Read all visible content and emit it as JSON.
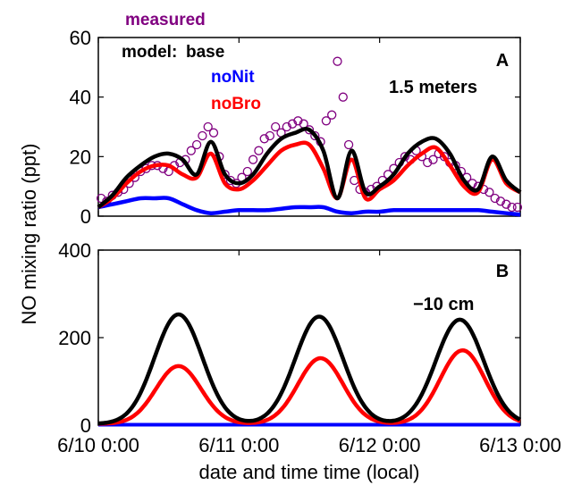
{
  "chart_data": [
    {
      "type": "scatter+line",
      "panel_label": "A",
      "annotation": "1.5 meters",
      "ylim": [
        0,
        60
      ],
      "yticks": [
        "0",
        "20",
        "40",
        "60"
      ],
      "xlim": [
        0,
        3
      ],
      "legend": {
        "measured": "measured",
        "model_prefix": "model:",
        "base": "base",
        "noNit": "noNit",
        "noBro": "noBro"
      },
      "colors": {
        "measured": "#800080",
        "base": "#000000",
        "noNit": "#0000ff",
        "noBro": "#ff0000"
      },
      "series": [
        {
          "name": "base",
          "x": [
            0.0,
            0.1,
            0.2,
            0.3,
            0.4,
            0.5,
            0.6,
            0.7,
            0.8,
            0.9,
            1.0,
            1.1,
            1.2,
            1.3,
            1.4,
            1.5,
            1.6,
            1.7,
            1.8,
            1.9,
            2.0,
            2.1,
            2.2,
            2.3,
            2.4,
            2.5,
            2.6,
            2.7,
            2.8,
            2.9,
            3.0
          ],
          "y": [
            3,
            7,
            13,
            17,
            20,
            21,
            19,
            14,
            25,
            14,
            11,
            14,
            21,
            26,
            28,
            29,
            22,
            6,
            22,
            8,
            10,
            14,
            21,
            25,
            26,
            21,
            12,
            9,
            20,
            12,
            8
          ]
        },
        {
          "name": "noBro",
          "x": [
            0.0,
            0.1,
            0.2,
            0.3,
            0.4,
            0.5,
            0.6,
            0.7,
            0.8,
            0.9,
            1.0,
            1.1,
            1.2,
            1.3,
            1.4,
            1.5,
            1.6,
            1.7,
            1.8,
            1.9,
            2.0,
            2.1,
            2.2,
            2.3,
            2.4,
            2.5,
            2.6,
            2.7,
            2.8,
            2.9,
            3.0
          ],
          "y": [
            3,
            6,
            11,
            15,
            17,
            17,
            14,
            13,
            21,
            11,
            9,
            12,
            17,
            22,
            24,
            24,
            16,
            6,
            19,
            6,
            9,
            12,
            17,
            21,
            23,
            17,
            10,
            8,
            19,
            11,
            8
          ]
        },
        {
          "name": "noNit",
          "x": [
            0.0,
            0.1,
            0.2,
            0.3,
            0.4,
            0.5,
            0.6,
            0.7,
            0.8,
            0.9,
            1.0,
            1.1,
            1.2,
            1.3,
            1.4,
            1.5,
            1.6,
            1.7,
            1.8,
            1.9,
            2.0,
            2.1,
            2.2,
            2.3,
            2.4,
            2.5,
            2.6,
            2.7,
            2.8,
            2.9,
            3.0
          ],
          "y": [
            3,
            4,
            5,
            6,
            6,
            6,
            4,
            2,
            1,
            1.5,
            2,
            2,
            2,
            2.5,
            3,
            3,
            3,
            1.5,
            1,
            1.5,
            1.5,
            2,
            2,
            2,
            2,
            2,
            2,
            2,
            1.5,
            1,
            0.5
          ]
        },
        {
          "name": "measured",
          "x": [
            0.02,
            0.06,
            0.1,
            0.14,
            0.18,
            0.22,
            0.26,
            0.3,
            0.34,
            0.38,
            0.42,
            0.46,
            0.5,
            0.54,
            0.58,
            0.62,
            0.66,
            0.7,
            0.74,
            0.78,
            0.82,
            0.86,
            0.9,
            0.94,
            0.98,
            1.02,
            1.06,
            1.1,
            1.14,
            1.18,
            1.22,
            1.26,
            1.3,
            1.34,
            1.38,
            1.42,
            1.46,
            1.5,
            1.54,
            1.58,
            1.62,
            1.66,
            1.7,
            1.74,
            1.78,
            1.82,
            1.86,
            1.9,
            1.94,
            1.98,
            2.02,
            2.06,
            2.1,
            2.14,
            2.18,
            2.22,
            2.26,
            2.3,
            2.34,
            2.38,
            2.42,
            2.46,
            2.5,
            2.54,
            2.58,
            2.62,
            2.66,
            2.7,
            2.74,
            2.78,
            2.82,
            2.86,
            2.9,
            2.94,
            2.98
          ],
          "y": [
            6,
            5,
            7,
            8,
            9,
            11,
            13,
            15,
            16,
            17,
            17,
            16,
            15,
            17,
            18,
            19,
            22,
            24,
            27,
            30,
            28,
            20,
            14,
            12,
            11,
            13,
            15,
            19,
            22,
            26,
            27,
            30,
            28,
            30,
            31,
            32,
            31,
            29,
            27,
            25,
            32,
            34,
            52,
            40,
            24,
            12,
            9,
            8,
            9,
            10,
            12,
            14,
            16,
            18,
            20,
            19,
            22,
            20,
            18,
            19,
            21,
            20,
            18,
            17,
            15,
            13,
            11,
            10,
            9,
            8,
            6,
            5,
            4,
            3,
            3
          ]
        }
      ]
    },
    {
      "type": "line",
      "panel_label": "B",
      "annotation": "−10 cm",
      "ylim": [
        0,
        400
      ],
      "yticks": [
        "0",
        "200",
        "400"
      ],
      "xlim": [
        0,
        3
      ],
      "xticks": [
        "6/10 0:00",
        "6/11 0:00",
        "6/12 0:00",
        "6/13 0:00"
      ],
      "xlabel": "date and time time (local)",
      "colors": {
        "base": "#000000",
        "noNit": "#0000ff",
        "noBro": "#ff0000"
      },
      "series": [
        {
          "name": "base",
          "peaks": [
            0.57,
            1.57,
            2.57
          ],
          "amplitudes": [
            250,
            245,
            238
          ],
          "width": 0.17
        },
        {
          "name": "noBro",
          "peaks": [
            0.57,
            1.58,
            2.59
          ],
          "amplitudes": [
            132,
            150,
            168
          ],
          "width": 0.16
        },
        {
          "name": "noNit",
          "constant": 1
        }
      ]
    }
  ],
  "ylabel": "NO mixing ratio (ppt)"
}
